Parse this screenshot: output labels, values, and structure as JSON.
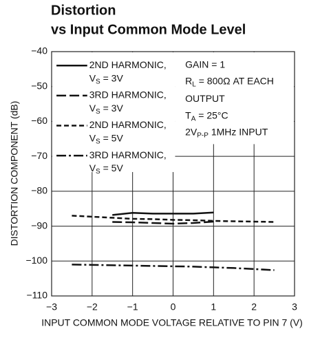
{
  "chart_data": {
    "type": "line",
    "title": [
      "Distortion",
      "vs Input Common Mode Level"
    ],
    "x_label": "INPUT COMMON MODE VOLTAGE RELATIVE TO PIN 7 (V)",
    "y_label": "DISTORTION COMPONENT (dB)",
    "xlim": [
      -3,
      3
    ],
    "ylim": [
      -110,
      -40
    ],
    "xticks": [
      {
        "value": -3,
        "label": "−3"
      },
      {
        "value": -2,
        "label": "−2"
      },
      {
        "value": -1,
        "label": "−1"
      },
      0,
      1,
      2,
      3
    ],
    "yticks": [
      {
        "value": -110,
        "label": "−110"
      },
      {
        "value": -100,
        "label": "−100"
      },
      {
        "value": -90,
        "label": "−90"
      },
      {
        "value": -80,
        "label": "−80"
      },
      {
        "value": -70,
        "label": "−70"
      },
      {
        "value": -60,
        "label": "−60"
      },
      {
        "value": -50,
        "label": "−50"
      },
      {
        "value": -40,
        "label": "−40"
      }
    ],
    "grid": true,
    "legend": "upper left",
    "series": [
      {
        "name": "2ND HARMONIC,",
        "condition": [
          {
            "t": "V"
          },
          {
            "t": "S",
            "sub": true
          },
          {
            "t": " = 3V"
          }
        ],
        "color": "#111",
        "dash": "solid",
        "x": [
          -1.5,
          -1,
          -0.5,
          0,
          0.5,
          1
        ],
        "values": [
          -86.8,
          -86.2,
          -86.4,
          -86.4,
          -86.4,
          -86.1
        ]
      },
      {
        "name": "3RD HARMONIC,",
        "condition": [
          {
            "t": "V"
          },
          {
            "t": "S",
            "sub": true
          },
          {
            "t": " = 3V"
          }
        ],
        "color": "#111",
        "dash": "longdash",
        "x": [
          -1.5,
          -1,
          -0.5,
          0,
          0.5,
          1
        ],
        "values": [
          -88.8,
          -88.9,
          -89.1,
          -89.3,
          -89.1,
          -88.7
        ]
      },
      {
        "name": "2ND HARMONIC,",
        "condition": [
          {
            "t": "V"
          },
          {
            "t": "S",
            "sub": true
          },
          {
            "t": " = 5V"
          }
        ],
        "color": "#111",
        "dash": "shortdash",
        "x": [
          -2.5,
          -2,
          -1.5,
          -1,
          -0.5,
          0,
          0.5,
          1,
          1.5,
          2,
          2.5
        ],
        "values": [
          -87.0,
          -87.3,
          -87.6,
          -87.9,
          -88.0,
          -88.2,
          -88.3,
          -88.5,
          -88.6,
          -88.7,
          -88.8
        ]
      },
      {
        "name": "3RD HARMONIC,",
        "condition": [
          {
            "t": "V"
          },
          {
            "t": "S",
            "sub": true
          },
          {
            "t": " = 5V"
          }
        ],
        "color": "#111",
        "dash": "dashdot",
        "x": [
          -2.5,
          -2,
          -1.5,
          -1,
          -0.5,
          0,
          0.5,
          1,
          1.5,
          2,
          2.5
        ],
        "values": [
          -101.0,
          -101.1,
          -101.2,
          -101.3,
          -101.4,
          -101.5,
          -101.6,
          -101.8,
          -102.0,
          -102.3,
          -102.6
        ]
      }
    ],
    "annotations": [
      [
        {
          "t": "GAIN = 1"
        }
      ],
      [
        {
          "t": "R"
        },
        {
          "t": "L",
          "sub": true
        },
        {
          "t": " = 800Ω AT EACH"
        }
      ],
      [
        {
          "t": "OUTPUT"
        }
      ],
      [
        {
          "t": "T"
        },
        {
          "t": "A",
          "sub": true
        },
        {
          "t": " = 25°C"
        }
      ],
      [
        {
          "t": "2V"
        },
        {
          "t": "P-P",
          "sub": true
        },
        {
          "t": " 1MHz INPUT"
        }
      ]
    ]
  }
}
